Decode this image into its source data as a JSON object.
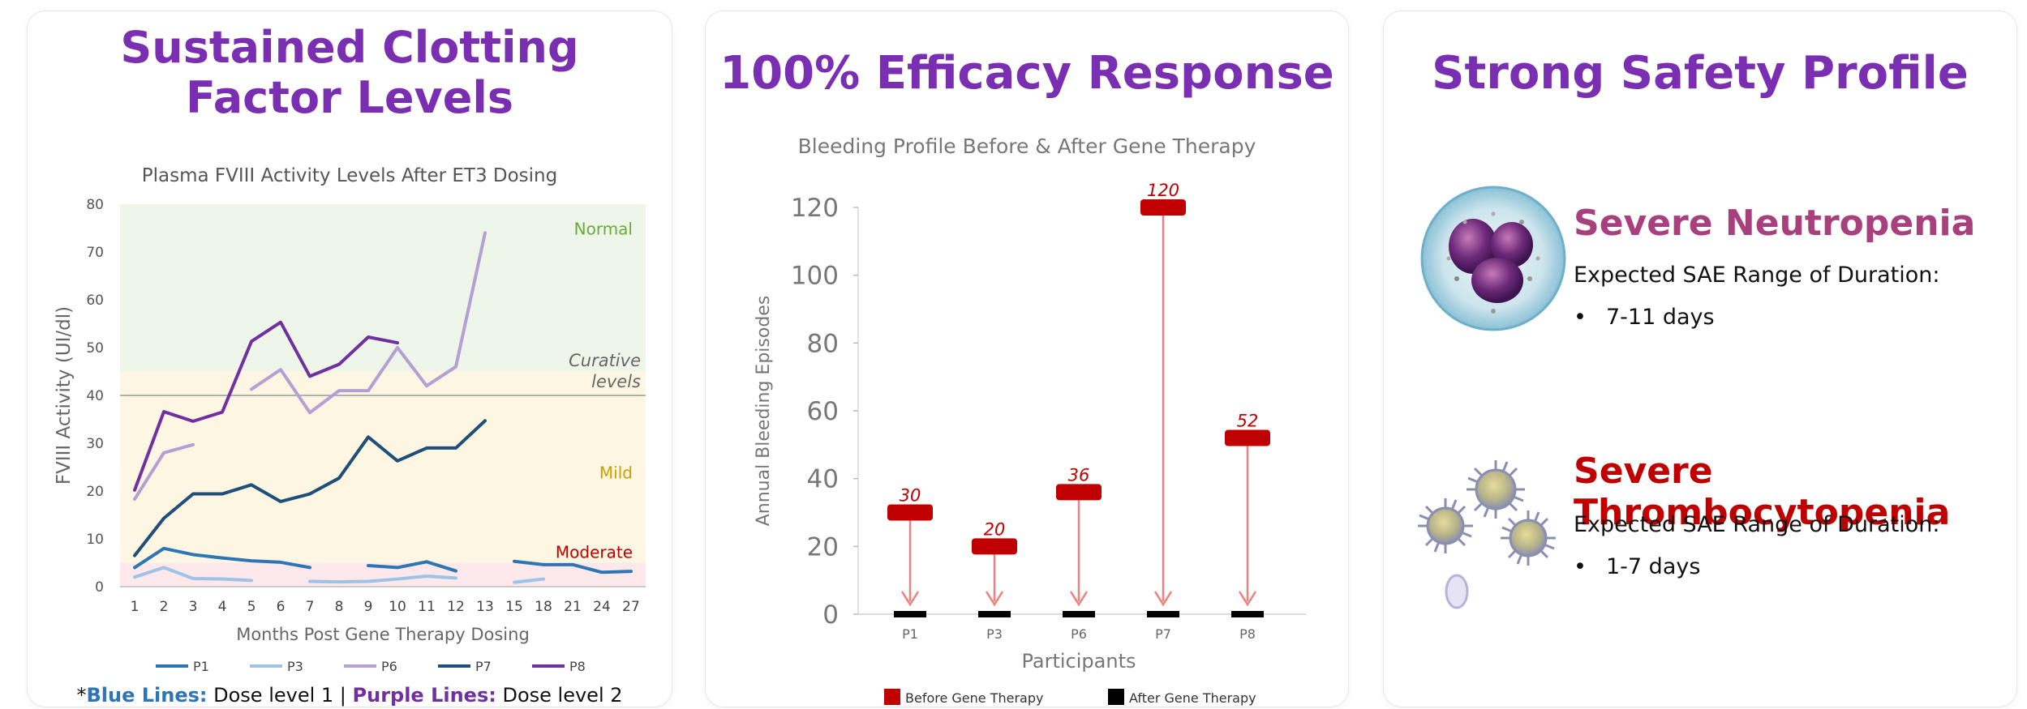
{
  "panel1": {
    "title_line1": "Sustained Clotting",
    "title_line2": "Factor Levels",
    "footnote": {
      "star": "*",
      "blue_label": "Blue Lines:",
      "blue_text": " Dose level 1 | ",
      "purple_label": "Purple Lines:",
      "purple_text": " Dose level 2"
    }
  },
  "panel2": {
    "title": "100% Efficacy Response"
  },
  "panel3": {
    "title": "Strong Safety Profile",
    "items": [
      {
        "title": "Severe Neutropenia",
        "color": "#a8407e",
        "subtitle": "Expected SAE Range of Duration:",
        "bullet": "•",
        "value": "7-11 days",
        "icon": "neutrophil-icon"
      },
      {
        "title": "Severe Thrombocytopenia",
        "color": "#c00000",
        "subtitle": "Expected SAE Range of Duration:",
        "bullet": "•",
        "value": "1-7 days",
        "icon": "platelet-icon"
      }
    ]
  },
  "chart_data": [
    {
      "type": "line",
      "title": "Plasma FVIII Activity Levels After ET3 Dosing",
      "xlabel": "Months Post Gene Therapy Dosing",
      "ylabel": "FVIII Activity (UI/dl)",
      "ylim": [
        0,
        80
      ],
      "yticks": [
        0,
        10,
        20,
        30,
        40,
        50,
        60,
        70,
        80
      ],
      "x": [
        "1",
        "2",
        "3",
        "4",
        "5",
        "6",
        "7",
        "8",
        "9",
        "10",
        "11",
        "12",
        "13",
        "15",
        "18",
        "21",
        "24",
        "27"
      ],
      "bands": [
        {
          "label": "Normal",
          "from": 45,
          "to": 80,
          "color": "#eef6ea",
          "label_color": "#6aaa3a"
        },
        {
          "label": "Mild",
          "from": 5,
          "to": 45,
          "color": "#fdf6e3",
          "label_color": "#c9a000"
        },
        {
          "label": "Moderate",
          "from": 0,
          "to": 5,
          "color": "#fde8ec",
          "label_color": "#c00000"
        }
      ],
      "reference_line": {
        "value": 40,
        "label_line1": "Curative",
        "label_line2": "levels"
      },
      "series": [
        {
          "name": "P1",
          "color": "#2e75b6",
          "values": [
            4,
            8,
            6.7,
            6,
            5.4,
            5.1,
            4,
            null,
            4.4,
            4,
            5.2,
            3.3,
            null,
            5.3,
            4.6,
            4.6,
            3,
            3.2
          ]
        },
        {
          "name": "P3",
          "color": "#9dc3e6",
          "values": [
            2,
            4,
            1.7,
            1.6,
            1.3,
            null,
            1.1,
            1,
            1.1,
            1.6,
            2.2,
            1.8,
            null,
            0.9,
            1.6,
            null,
            null,
            null
          ]
        },
        {
          "name": "P6",
          "color": "#b4a0d4",
          "values": [
            18.3,
            28,
            29.7,
            null,
            41.3,
            45.4,
            36.4,
            41,
            41,
            50,
            42,
            46,
            74,
            null,
            null,
            null,
            null,
            null
          ]
        },
        {
          "name": "P7",
          "color": "#1f4e79",
          "values": [
            6.5,
            14.3,
            19.4,
            19.4,
            21.3,
            17.8,
            19.4,
            22.7,
            31.3,
            26.3,
            29,
            29,
            34.7,
            null,
            null,
            null,
            null,
            null
          ]
        },
        {
          "name": "P8",
          "color": "#7030a0",
          "values": [
            20.2,
            36.6,
            34.6,
            36.5,
            51.3,
            55.3,
            44,
            46.5,
            52.2,
            51,
            null,
            null,
            null,
            null,
            null,
            null,
            null,
            null
          ]
        }
      ]
    },
    {
      "type": "bar",
      "title": "Bleeding Profile Before & After Gene Therapy",
      "xlabel": "Participants",
      "ylabel": "Annual Bleeding Episodes",
      "ylim": [
        0,
        120
      ],
      "yticks": [
        0,
        20,
        40,
        60,
        80,
        100,
        120
      ],
      "categories": [
        "P1",
        "P3",
        "P6",
        "P7",
        "P8"
      ],
      "series": [
        {
          "name": "Before Gene Therapy",
          "color": "#c00000",
          "values": [
            30,
            20,
            36,
            120,
            52
          ]
        },
        {
          "name": "After Gene Therapy",
          "color": "#000000",
          "values": [
            0,
            0,
            0,
            0,
            0
          ]
        }
      ],
      "arrow_color": "#f08080"
    }
  ]
}
